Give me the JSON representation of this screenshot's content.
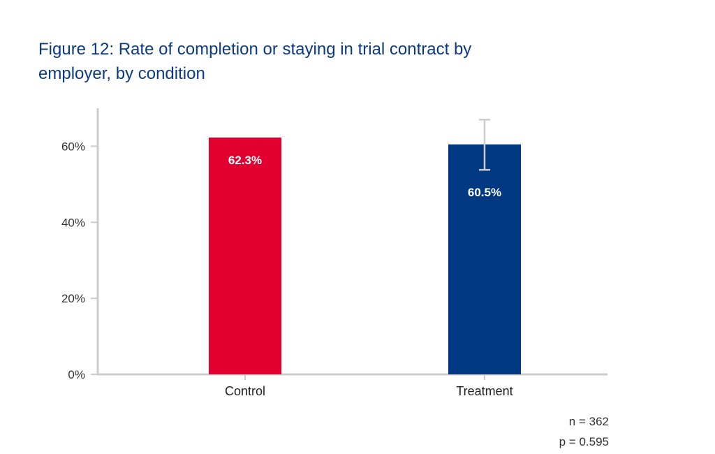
{
  "chart_data": {
    "type": "bar",
    "title_lines": [
      "Figure 12: Rate of completion or staying in trial contract by",
      "employer, by condition"
    ],
    "categories": [
      "Control",
      "Treatment"
    ],
    "values": [
      62.3,
      60.5
    ],
    "data_labels": [
      "62.3%",
      "60.5%"
    ],
    "bar_colors": [
      "#e1002f",
      "#003882"
    ],
    "error_bars": [
      null,
      {
        "low": 53.8,
        "high": 67.0
      }
    ],
    "error_bar_color": "#cccccc",
    "ylim": [
      0,
      70
    ],
    "yticks": [
      0,
      20,
      40,
      60
    ],
    "ytick_labels": [
      "0%",
      "20%",
      "40%",
      "60%"
    ],
    "axis_color": "#cccccc",
    "xlabel": "",
    "ylabel": "",
    "notes": [
      "n = 362",
      "p = 0.595"
    ]
  }
}
